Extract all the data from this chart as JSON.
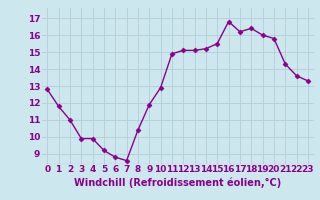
{
  "x": [
    0,
    1,
    2,
    3,
    4,
    5,
    6,
    7,
    8,
    9,
    10,
    11,
    12,
    13,
    14,
    15,
    16,
    17,
    18,
    19,
    20,
    21,
    22,
    23
  ],
  "y": [
    12.8,
    11.8,
    11.0,
    9.9,
    9.9,
    9.2,
    8.8,
    8.6,
    10.4,
    11.9,
    12.9,
    14.9,
    15.1,
    15.1,
    15.2,
    15.5,
    16.8,
    16.2,
    16.4,
    16.0,
    15.8,
    14.3,
    13.6,
    13.3
  ],
  "line_color": "#8b008b",
  "marker": "D",
  "marker_size": 2.5,
  "xlabel": "Windchill (Refroidissement éolien,°C)",
  "xlabel_fontsize": 7,
  "yticks": [
    9,
    10,
    11,
    12,
    13,
    14,
    15,
    16,
    17
  ],
  "xtick_labels": [
    "0",
    "1",
    "2",
    "3",
    "4",
    "5",
    "6",
    "7",
    "8",
    "9",
    "10",
    "11",
    "12",
    "13",
    "14",
    "15",
    "16",
    "17",
    "18",
    "19",
    "20",
    "21",
    "22",
    "23"
  ],
  "ylim": [
    8.4,
    17.6
  ],
  "xlim": [
    -0.5,
    23.5
  ],
  "bg_color": "#cce8ee",
  "grid_color": "#b8d0d8",
  "tick_color": "#8b008b",
  "tick_fontsize": 6.5,
  "line_width": 1.0
}
